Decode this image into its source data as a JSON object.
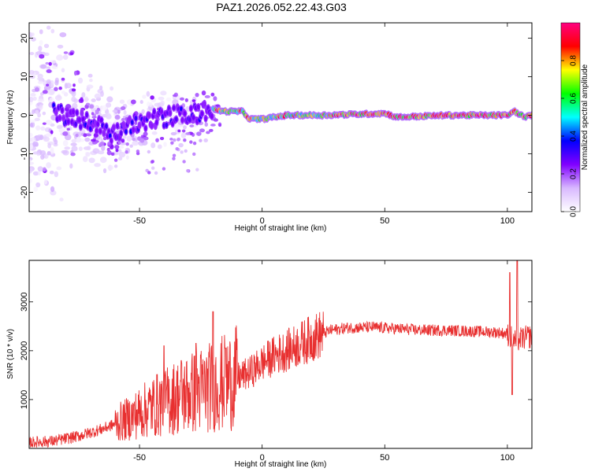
{
  "chart_data": [
    {
      "type": "heatmap",
      "title": "PAZ1.2026.052.22.43.G03",
      "xlabel": "Height of straight line (km)",
      "ylabel": "Frequency (Hz)",
      "xlim": [
        -95,
        110
      ],
      "ylim": [
        -25,
        24
      ],
      "xticks": [
        -50,
        0,
        50,
        100
      ],
      "yticks": [
        -20,
        -10,
        0,
        10,
        20
      ],
      "colorbar": {
        "label": "Normalized spectral amplitude",
        "range": [
          0,
          1
        ],
        "ticks": [
          "0.0",
          "0.2",
          "0.4",
          "0.6",
          "0.8"
        ],
        "colormap": [
          "#ffffff",
          "#d8b8ff",
          "#8000ff",
          "#0000ff",
          "#00ffff",
          "#00ff00",
          "#ffff00",
          "#ff0000",
          "#ff0080"
        ]
      },
      "centerline": [
        {
          "x": -83,
          "f": 0.5
        },
        {
          "x": -70,
          "f": -1.5
        },
        {
          "x": -60,
          "f": -5
        },
        {
          "x": -55,
          "f": -3
        },
        {
          "x": -45,
          "f": -1
        },
        {
          "x": -35,
          "f": 0
        },
        {
          "x": -25,
          "f": 0.5
        },
        {
          "x": -20,
          "f": 1.5
        },
        {
          "x": -15,
          "f": 1
        },
        {
          "x": -8,
          "f": 1
        },
        {
          "x": -5,
          "f": -1
        },
        {
          "x": 0,
          "f": -1
        },
        {
          "x": 10,
          "f": 0
        },
        {
          "x": 25,
          "f": 0
        },
        {
          "x": 50,
          "f": 0.5
        },
        {
          "x": 55,
          "f": -0.5
        },
        {
          "x": 75,
          "f": 0
        },
        {
          "x": 100,
          "f": 0
        },
        {
          "x": 103,
          "f": 1
        },
        {
          "x": 107,
          "f": -0.5
        },
        {
          "x": 110,
          "f": 0
        }
      ]
    },
    {
      "type": "line",
      "xlabel": "Height of straight line (km)",
      "ylabel": "SNR (10 * v/v)",
      "xlim": [
        -95,
        110
      ],
      "ylim": [
        0,
        3850
      ],
      "xticks": [
        -50,
        0,
        50,
        100
      ],
      "yticks": [
        1000,
        2000,
        3000
      ],
      "color": "#e83030",
      "envelope": [
        {
          "x": -95,
          "y": 120
        },
        {
          "x": -85,
          "y": 150
        },
        {
          "x": -75,
          "y": 250
        },
        {
          "x": -65,
          "y": 400
        },
        {
          "x": -55,
          "y": 600
        },
        {
          "x": -45,
          "y": 850
        },
        {
          "x": -35,
          "y": 1050
        },
        {
          "x": -25,
          "y": 1200
        },
        {
          "x": -15,
          "y": 1350
        },
        {
          "x": -5,
          "y": 1550
        },
        {
          "x": 0,
          "y": 1750
        },
        {
          "x": 5,
          "y": 1900
        },
        {
          "x": 12,
          "y": 2050
        },
        {
          "x": 20,
          "y": 2250
        },
        {
          "x": 28,
          "y": 2420
        },
        {
          "x": 35,
          "y": 2470
        },
        {
          "x": 45,
          "y": 2480
        },
        {
          "x": 55,
          "y": 2450
        },
        {
          "x": 65,
          "y": 2420
        },
        {
          "x": 75,
          "y": 2420
        },
        {
          "x": 85,
          "y": 2400
        },
        {
          "x": 95,
          "y": 2380
        },
        {
          "x": 100,
          "y": 2350
        },
        {
          "x": 103,
          "y": 2200
        },
        {
          "x": 106,
          "y": 2250
        },
        {
          "x": 110,
          "y": 2300
        }
      ],
      "peaks": [
        {
          "x": -20,
          "y": 2800
        },
        {
          "x": -27,
          "y": 2150
        },
        {
          "x": -40,
          "y": 2100
        },
        {
          "x": -33,
          "y": 1800
        },
        {
          "x": -15,
          "y": 2050
        },
        {
          "x": 101,
          "y": 3600
        },
        {
          "x": 104,
          "y": 3850
        },
        {
          "x": 102,
          "y": 1100
        }
      ]
    }
  ]
}
